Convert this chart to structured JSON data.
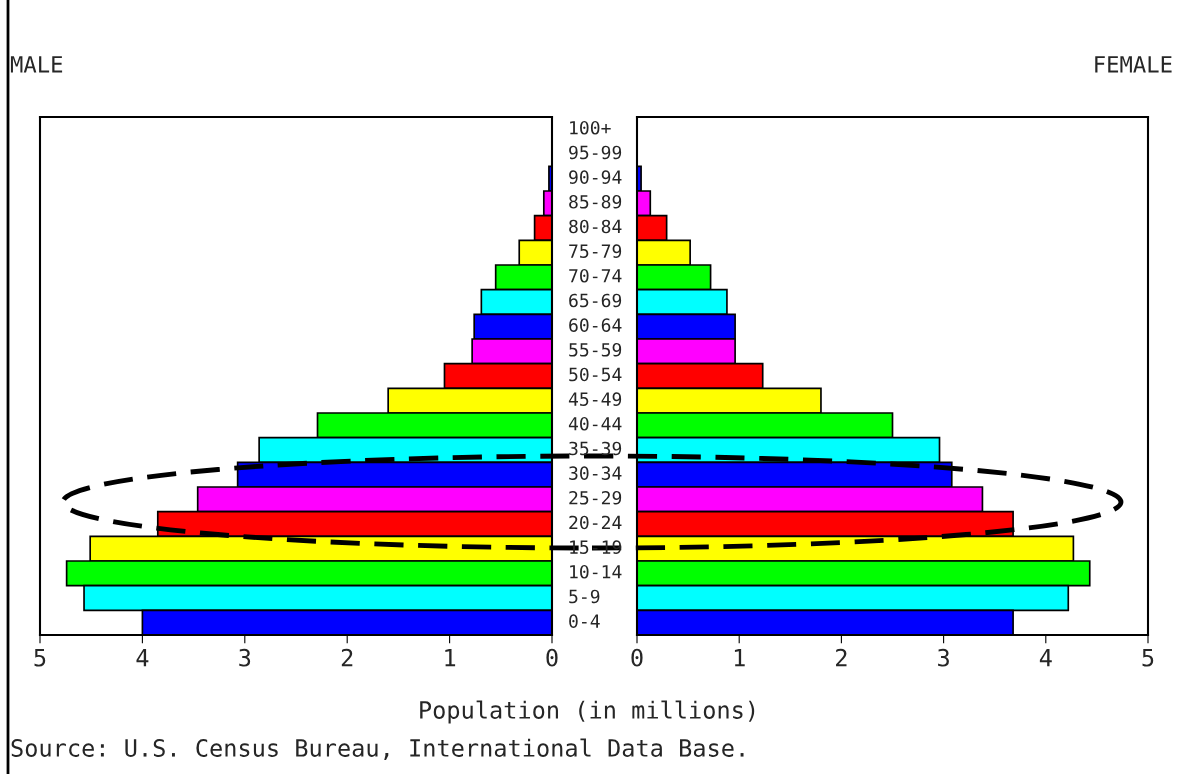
{
  "chart_data": [
    {
      "type": "bar",
      "orientation": "horizontal",
      "title": "MALE",
      "xlabel": "Population (in millions)",
      "categories": [
        "100+",
        "95-99",
        "90-94",
        "85-89",
        "80-84",
        "75-79",
        "70-74",
        "65-69",
        "60-64",
        "55-59",
        "50-54",
        "45-49",
        "40-44",
        "35-39",
        "30-34",
        "25-29",
        "20-24",
        "15-19",
        "10-14",
        "5-9",
        "0-4"
      ],
      "values": [
        null,
        null,
        0.03,
        0.08,
        0.17,
        0.32,
        0.55,
        0.69,
        0.76,
        0.78,
        1.05,
        1.6,
        2.29,
        2.86,
        3.07,
        3.46,
        3.85,
        4.51,
        4.74,
        4.57,
        4.0
      ],
      "colors": [
        "#ff00ff",
        "#ff0000",
        "#0000ff",
        "#ff00ff",
        "#ff0000",
        "#ffff00",
        "#00ff00",
        "#00ffff",
        "#0000ff",
        "#ff00ff",
        "#ff0000",
        "#ffff00",
        "#00ff00",
        "#00ffff",
        "#0000ff",
        "#ff00ff",
        "#ff0000",
        "#ffff00",
        "#00ff00",
        "#00ffff",
        "#0000ff"
      ],
      "xlim": [
        5,
        0
      ],
      "xticks": [
        5,
        4,
        3,
        2,
        1,
        0
      ],
      "annotations": [
        "Source: U.S. Census Bureau, International Data Base."
      ]
    },
    {
      "type": "bar",
      "orientation": "horizontal",
      "title": "FEMALE",
      "tick_labels": "x",
      "values": [
        null,
        null,
        0.04,
        0.13,
        0.29,
        0.52,
        0.72,
        0.88,
        0.96,
        0.96,
        1.23,
        1.8,
        2.5,
        2.96,
        3.08,
        3.38,
        3.68,
        4.27,
        4.43,
        4.22,
        3.68
      ],
      "colors": [
        "#ff00ff",
        "#ff0000",
        "#0000ff",
        "#ff00ff",
        "#ff0000",
        "#ffff00",
        "#00ff00",
        "#00ffff",
        "#0000ff",
        "#ff00ff",
        "#ff0000",
        "#ffff00",
        "#00ff00",
        "#00ffff",
        "#0000ff",
        "#ff00ff",
        "#ff0000",
        "#ffff00",
        "#00ff00",
        "#00ffff",
        "#0000ff"
      ],
      "xlim": [
        0,
        5
      ],
      "xticks": [
        0,
        1,
        2,
        3,
        4,
        5
      ]
    }
  ]
}
